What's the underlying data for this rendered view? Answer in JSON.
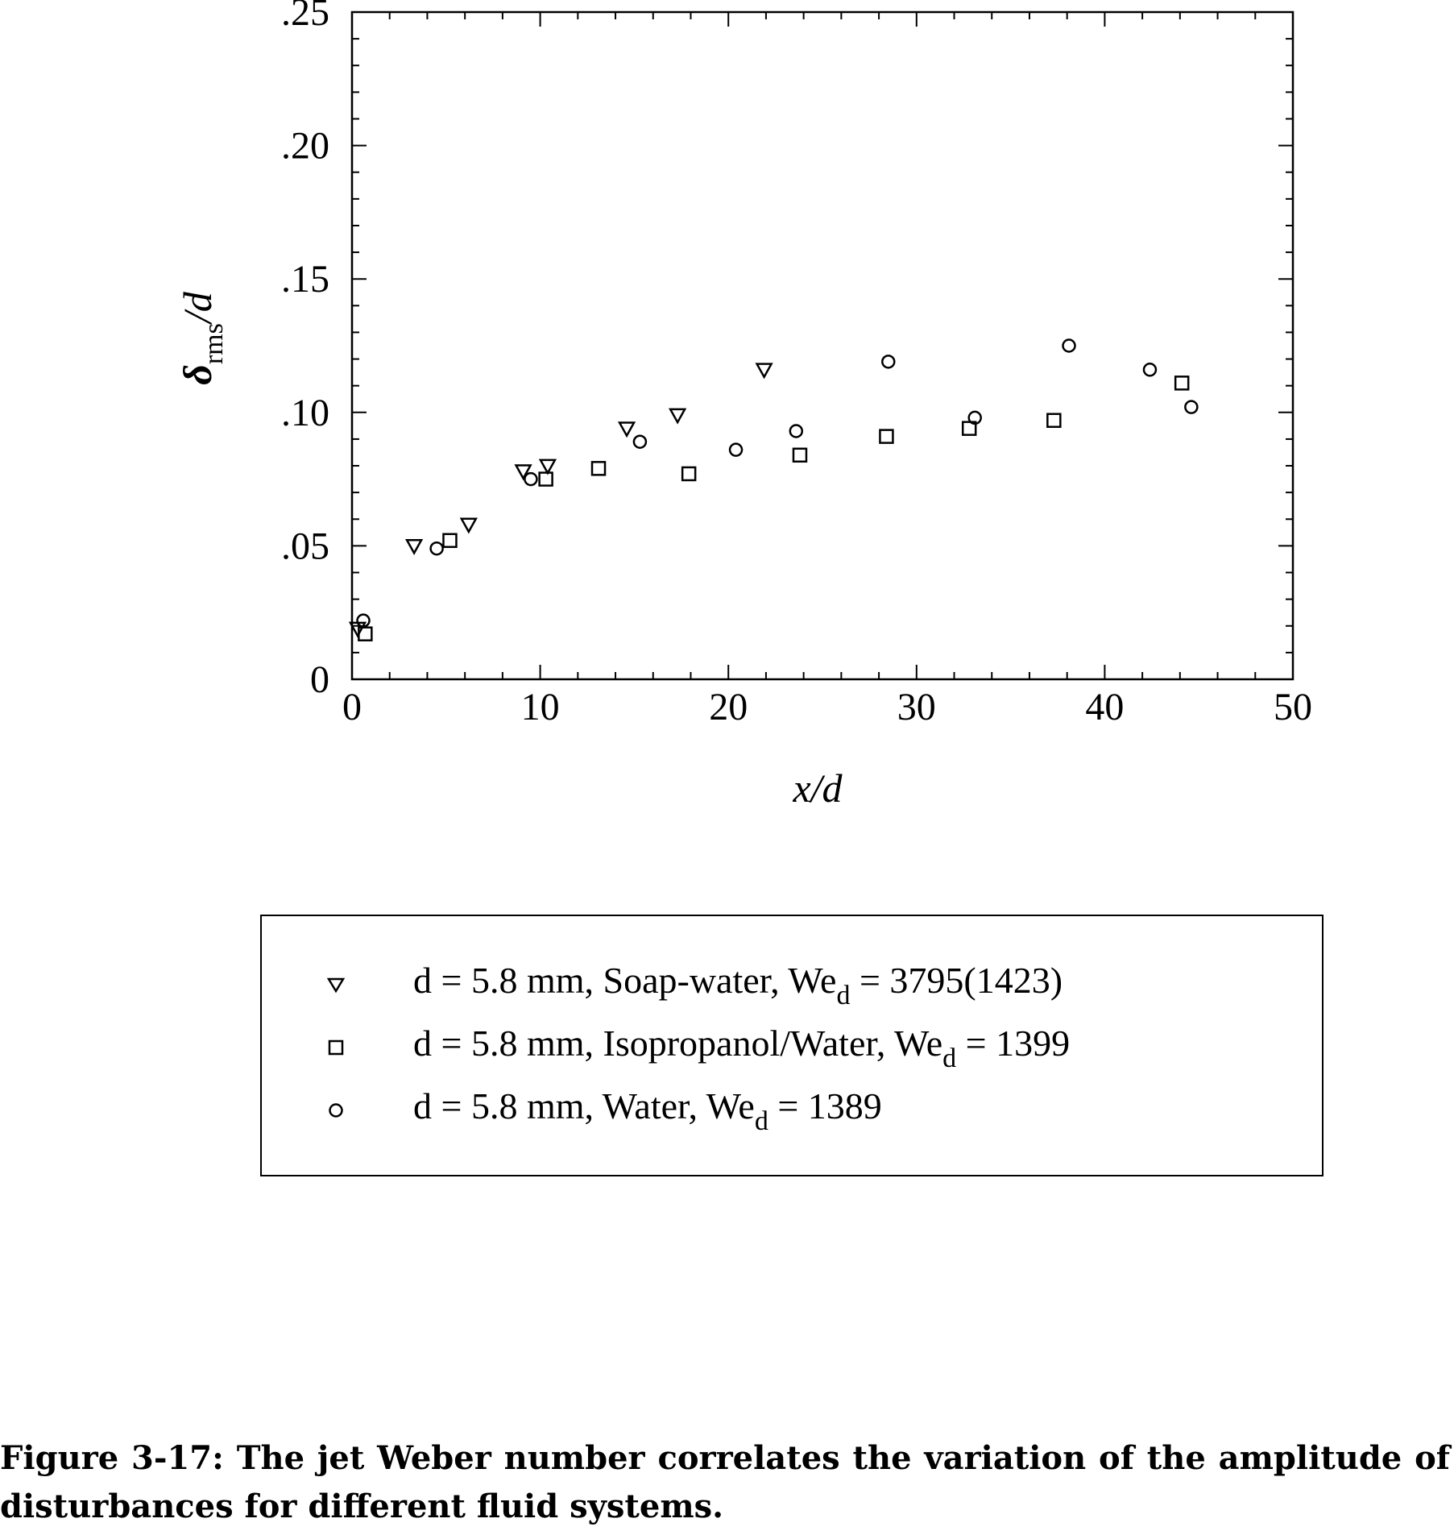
{
  "chart_data": {
    "type": "scatter",
    "title": "",
    "xlabel": "x/d",
    "ylabel_symbol": "δ",
    "ylabel_sub": "rms",
    "ylabel_suffix": "/d",
    "xlim": [
      0,
      50
    ],
    "ylim": [
      0,
      0.25
    ],
    "xticks": [
      0,
      10,
      20,
      30,
      40,
      50
    ],
    "xtick_labels": [
      "0",
      "10",
      "20",
      "30",
      "40",
      "50"
    ],
    "yticks": [
      0,
      0.05,
      0.1,
      0.15,
      0.2,
      0.25
    ],
    "ytick_labels": [
      "0",
      ".05",
      ".10",
      ".15",
      ".20",
      ".25"
    ],
    "grid": false,
    "legend_position": "below",
    "series": [
      {
        "name": "soap-water",
        "marker": "triangle-down",
        "legend_main": "d = 5.8 mm, Soap-water, We",
        "legend_sub": "d",
        "legend_tail": " = 3795(1423)",
        "x": [
          0.3,
          3.3,
          6.2,
          9.1,
          10.4,
          14.6,
          17.3,
          21.9
        ],
        "y": [
          0.019,
          0.05,
          0.058,
          0.078,
          0.08,
          0.094,
          0.099,
          0.116
        ]
      },
      {
        "name": "isopropanol-water",
        "marker": "square",
        "legend_main": "d = 5.8 mm, Isopropanol/Water, We",
        "legend_sub": "d",
        "legend_tail": " = 1399",
        "x": [
          0.7,
          5.2,
          10.3,
          13.1,
          17.9,
          23.8,
          28.4,
          32.8,
          37.3,
          44.1
        ],
        "y": [
          0.017,
          0.052,
          0.075,
          0.079,
          0.077,
          0.084,
          0.091,
          0.094,
          0.097,
          0.111
        ]
      },
      {
        "name": "water",
        "marker": "circle",
        "legend_main": "d = 5.8 mm, Water, We",
        "legend_sub": "d",
        "legend_tail": " = 1389",
        "x": [
          0.6,
          4.5,
          9.5,
          15.3,
          20.4,
          23.6,
          28.5,
          33.1,
          38.1,
          42.4,
          44.6
        ],
        "y": [
          0.022,
          0.049,
          0.075,
          0.089,
          0.086,
          0.093,
          0.119,
          0.098,
          0.125,
          0.116,
          0.102
        ]
      }
    ]
  },
  "caption": {
    "line1": "Figure 3-17: The jet Weber number correlates the variation of the amplitude of",
    "line2": "disturbances for different fluid systems."
  }
}
